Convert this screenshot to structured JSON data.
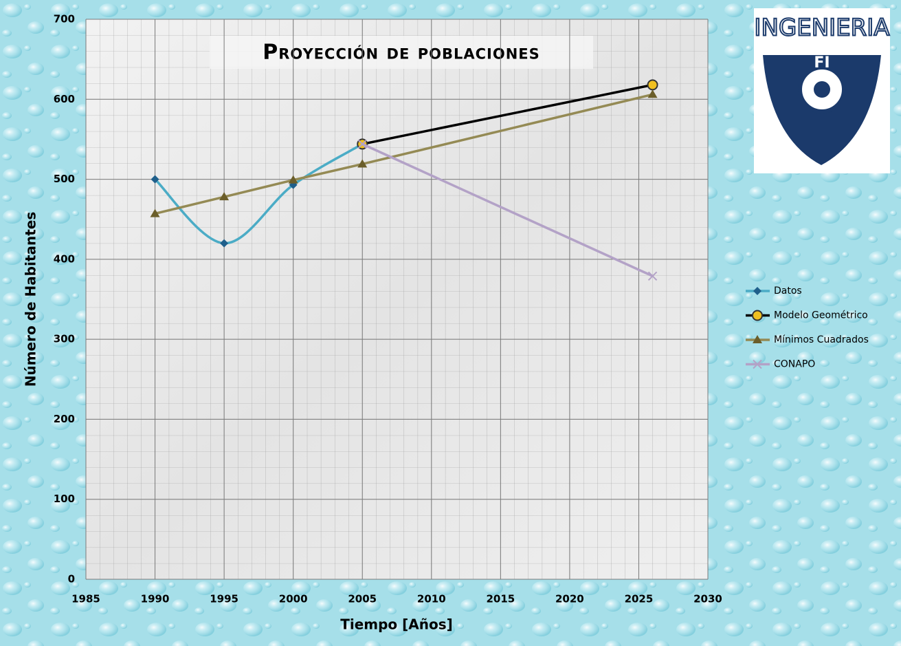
{
  "chart_data": {
    "type": "scatter",
    "title": "Proyección de poblaciones",
    "x_label": "Tiempo [Años]",
    "y_label": "Número de Habitantes",
    "xlim": [
      1985,
      2030
    ],
    "xticks": [
      1985,
      1990,
      1995,
      2000,
      2005,
      2010,
      2015,
      2020,
      2025,
      2030
    ],
    "ylim": [
      0,
      700
    ],
    "yticks": [
      0,
      100,
      200,
      300,
      400,
      500,
      600,
      700
    ],
    "grid": true,
    "legend": "right",
    "series": [
      {
        "name": "Datos",
        "color": "#4bacc6",
        "marker_color": "#1f5f8b",
        "marker": "diamond",
        "smooth": true,
        "x": [
          1990,
          1995,
          2000,
          2005
        ],
        "values": [
          500,
          420,
          493,
          544
        ]
      },
      {
        "name": "Modelo Geométrico",
        "color": "#000000",
        "marker_color": "#f0c020",
        "marker": "circle",
        "smooth": false,
        "x": [
          2005,
          2026
        ],
        "values": [
          544,
          618
        ]
      },
      {
        "name": "Mínimos Cuadrados",
        "color": "#948a54",
        "marker_color": "#6b5e2a",
        "marker": "triangle",
        "smooth": false,
        "x": [
          1990,
          1995,
          2000,
          2005,
          2026
        ],
        "values": [
          457,
          478,
          499,
          519,
          606
        ]
      },
      {
        "name": "CONAPO",
        "color": "#b3a2c7",
        "marker_color": "#b3a2c7",
        "marker": "x",
        "smooth": false,
        "x": [
          2005,
          2026
        ],
        "values": [
          544,
          379
        ]
      }
    ]
  },
  "logo": {
    "text": "INGENIERIA",
    "initials": "FI"
  }
}
